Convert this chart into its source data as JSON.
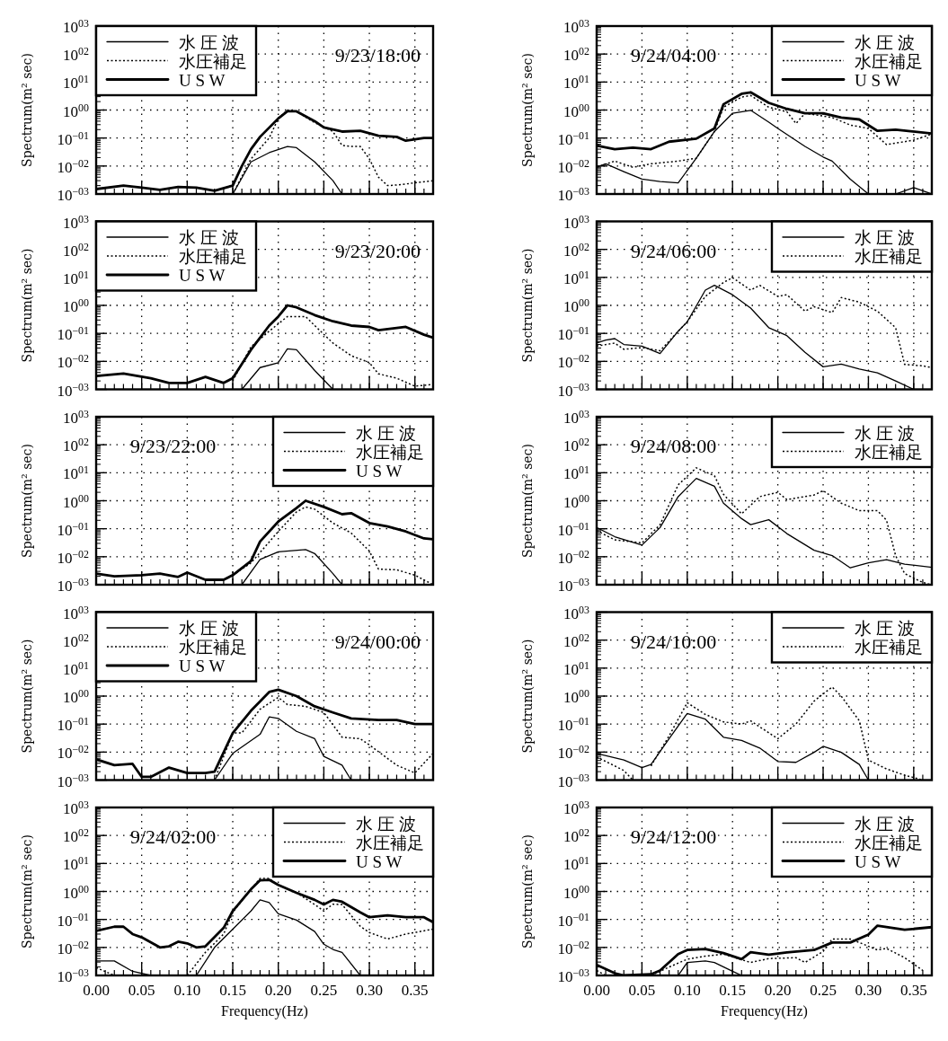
{
  "chart_data": [
    {
      "type": "line",
      "annotations": [
        "9/23/18:00"
      ],
      "ylabel": "Spectrum(m² sec)",
      "xlim": [
        0,
        0.37
      ],
      "ylim": [
        0.001,
        1000
      ],
      "log": "y",
      "grid": true,
      "legend": "top left",
      "tick_labels": "y",
      "xticks": [
        {
          "value": 0,
          "label": null
        },
        {
          "value": 0.05,
          "label": null
        },
        {
          "value": 0.1,
          "label": null
        },
        {
          "value": 0.15,
          "label": null
        },
        {
          "value": 0.2,
          "label": null
        },
        {
          "value": 0.25,
          "label": null
        },
        {
          "value": 0.3,
          "label": null
        },
        {
          "value": 0.35,
          "label": null
        }
      ],
      "yticks": [
        {
          "value": 0.001,
          "label": "10$^{−03}$"
        },
        {
          "value": 0.01,
          "label": "10$^{−02}$"
        },
        {
          "value": 0.1,
          "label": "10$^{−01}$"
        },
        {
          "value": 1,
          "label": "10$^{00}$"
        },
        {
          "value": 10,
          "label": "10$^{01}$"
        },
        {
          "value": 100,
          "label": "10$^{02}$"
        },
        {
          "value": 1000,
          "label": "10$^{03}$"
        }
      ],
      "series": [
        {
          "name": "水 圧 波",
          "color": "#000000",
          "line_style": "solid",
          "x": [
            0.15,
            0.17,
            0.19,
            0.21,
            0.22,
            0.24,
            0.26,
            0.27
          ],
          "values": [
            0.001,
            0.014,
            0.03,
            0.05,
            0.045,
            0.014,
            0.003,
            0.001
          ]
        },
        {
          "name": "水圧補足",
          "color": "#000000",
          "line_style": "dotted",
          "x": [
            0.15,
            0.17,
            0.19,
            0.2,
            0.21,
            0.22,
            0.24,
            0.25,
            0.26,
            0.27,
            0.28,
            0.29,
            0.3,
            0.31,
            0.32,
            0.33,
            0.35,
            0.37
          ],
          "values": [
            0.001,
            0.018,
            0.1,
            0.5,
            1.0,
            0.9,
            0.35,
            0.25,
            0.17,
            0.055,
            0.05,
            0.05,
            0.018,
            0.004,
            0.002,
            0.0021,
            0.0025,
            0.003
          ]
        },
        {
          "name": "U S W",
          "color": "#000000",
          "line_style": "solid",
          "x": [
            0,
            0.03,
            0.05,
            0.07,
            0.09,
            0.11,
            0.13,
            0.15,
            0.16,
            0.17,
            0.18,
            0.2,
            0.21,
            0.22,
            0.24,
            0.25,
            0.27,
            0.29,
            0.31,
            0.33,
            0.34,
            0.36,
            0.37
          ],
          "values": [
            0.0015,
            0.002,
            0.0017,
            0.0014,
            0.0018,
            0.0017,
            0.0013,
            0.002,
            0.01,
            0.04,
            0.11,
            0.5,
            0.9,
            0.9,
            0.4,
            0.24,
            0.17,
            0.18,
            0.12,
            0.11,
            0.08,
            0.1,
            0.1
          ]
        }
      ]
    },
    {
      "type": "line",
      "annotations": [
        "9/24/04:00"
      ],
      "ylabel": "Spectrum(m² sec)",
      "xlim": [
        0,
        0.37
      ],
      "ylim": [
        0.001,
        1000
      ],
      "log": "y",
      "grid": true,
      "legend": "top right",
      "tick_labels": "y",
      "xticks": [
        {
          "value": 0,
          "label": null
        },
        {
          "value": 0.05,
          "label": null
        },
        {
          "value": 0.1,
          "label": null
        },
        {
          "value": 0.15,
          "label": null
        },
        {
          "value": 0.2,
          "label": null
        },
        {
          "value": 0.25,
          "label": null
        },
        {
          "value": 0.3,
          "label": null
        },
        {
          "value": 0.35,
          "label": null
        }
      ],
      "yticks": [
        {
          "value": 0.001,
          "label": "10$^{−03}$"
        },
        {
          "value": 0.01,
          "label": "10$^{−02}$"
        },
        {
          "value": 0.1,
          "label": "10$^{−01}$"
        },
        {
          "value": 1,
          "label": "10$^{00}$"
        },
        {
          "value": 10,
          "label": "10$^{01}$"
        },
        {
          "value": 100,
          "label": "10$^{02}$"
        },
        {
          "value": 1000,
          "label": "10$^{03}$"
        }
      ],
      "series": [
        {
          "name": "水 圧 波",
          "color": "#000000",
          "line_style": "solid",
          "x": [
            0,
            0.01,
            0.03,
            0.05,
            0.07,
            0.09,
            0.11,
            0.13,
            0.15,
            0.17,
            0.19,
            0.2,
            0.23,
            0.25,
            0.26,
            0.28,
            0.3,
            0.33,
            0.35,
            0.37
          ],
          "values": [
            0.009,
            0.012,
            0.0063,
            0.0034,
            0.0028,
            0.0025,
            0.019,
            0.17,
            0.77,
            0.98,
            0.37,
            0.22,
            0.05,
            0.021,
            0.015,
            0.0034,
            0.001,
            0.001,
            0.0017,
            0.001
          ]
        },
        {
          "name": "水圧補足",
          "color": "#000000",
          "line_style": "dotted",
          "x": [
            0,
            0.02,
            0.04,
            0.06,
            0.09,
            0.11,
            0.13,
            0.14,
            0.16,
            0.17,
            0.19,
            0.21,
            0.22,
            0.23,
            0.26,
            0.28,
            0.3,
            0.32,
            0.35,
            0.37
          ],
          "values": [
            0.0091,
            0.015,
            0.009,
            0.012,
            0.015,
            0.019,
            0.17,
            1.26,
            2.9,
            3.3,
            1.26,
            0.87,
            0.33,
            0.77,
            0.54,
            0.29,
            0.22,
            0.058,
            0.084,
            0.14
          ]
        },
        {
          "name": "U S W",
          "color": "#000000",
          "line_style": "solid",
          "x": [
            0,
            0.02,
            0.04,
            0.06,
            0.08,
            0.11,
            0.13,
            0.14,
            0.16,
            0.17,
            0.19,
            0.21,
            0.23,
            0.25,
            0.27,
            0.29,
            0.31,
            0.33,
            0.37
          ],
          "values": [
            0.054,
            0.04,
            0.045,
            0.04,
            0.074,
            0.095,
            0.22,
            1.6,
            3.8,
            4.3,
            1.8,
            1.1,
            0.77,
            0.77,
            0.54,
            0.46,
            0.18,
            0.2,
            0.145
          ]
        }
      ]
    },
    {
      "type": "line",
      "annotations": [
        "9/23/20:00"
      ],
      "ylabel": "Spectrum(m² sec)",
      "xlim": [
        0,
        0.37
      ],
      "ylim": [
        0.001,
        1000
      ],
      "log": "y",
      "grid": true,
      "legend": "top left",
      "tick_labels": "y",
      "xticks": [
        {
          "value": 0,
          "label": null
        },
        {
          "value": 0.05,
          "label": null
        },
        {
          "value": 0.1,
          "label": null
        },
        {
          "value": 0.15,
          "label": null
        },
        {
          "value": 0.2,
          "label": null
        },
        {
          "value": 0.25,
          "label": null
        },
        {
          "value": 0.3,
          "label": null
        },
        {
          "value": 0.35,
          "label": null
        }
      ],
      "yticks": [
        {
          "value": 0.001,
          "label": "10$^{−03}$"
        },
        {
          "value": 0.01,
          "label": "10$^{−02}$"
        },
        {
          "value": 0.1,
          "label": "10$^{−01}$"
        },
        {
          "value": 1,
          "label": "10$^{00}$"
        },
        {
          "value": 10,
          "label": "10$^{01}$"
        },
        {
          "value": 100,
          "label": "10$^{02}$"
        },
        {
          "value": 1000,
          "label": "10$^{03}$"
        }
      ],
      "series": [
        {
          "name": "水 圧 波",
          "color": "#000000",
          "line_style": "solid",
          "x": [
            0.16,
            0.18,
            0.2,
            0.21,
            0.22,
            0.24,
            0.26
          ],
          "values": [
            0.001,
            0.006,
            0.009,
            0.028,
            0.026,
            0.0047,
            0.001
          ]
        },
        {
          "name": "水圧補足",
          "color": "#000000",
          "line_style": "dotted",
          "x": [
            0.15,
            0.17,
            0.19,
            0.21,
            0.23,
            0.24,
            0.26,
            0.28,
            0.3,
            0.31,
            0.33,
            0.35,
            0.37
          ],
          "values": [
            0.002,
            0.033,
            0.12,
            0.4,
            0.4,
            0.19,
            0.045,
            0.016,
            0.009,
            0.0036,
            0.0025,
            0.0013,
            0.0015
          ]
        },
        {
          "name": "U S W",
          "color": "#000000",
          "line_style": "solid",
          "x": [
            0,
            0.03,
            0.06,
            0.08,
            0.1,
            0.12,
            0.14,
            0.15,
            0.17,
            0.19,
            0.2,
            0.21,
            0.22,
            0.24,
            0.26,
            0.28,
            0.3,
            0.31,
            0.34,
            0.36,
            0.37
          ],
          "values": [
            0.003,
            0.0037,
            0.0025,
            0.0017,
            0.0017,
            0.0028,
            0.0017,
            0.0025,
            0.026,
            0.19,
            0.4,
            1.0,
            0.85,
            0.45,
            0.27,
            0.19,
            0.17,
            0.13,
            0.17,
            0.09,
            0.07
          ]
        }
      ]
    },
    {
      "type": "line",
      "annotations": [
        "9/24/06:00"
      ],
      "ylabel": "Spectrum(m² sec)",
      "xlim": [
        0,
        0.37
      ],
      "ylim": [
        0.001,
        1000
      ],
      "log": "y",
      "grid": true,
      "legend": "top right",
      "tick_labels": "y",
      "xticks": [
        {
          "value": 0,
          "label": null
        },
        {
          "value": 0.05,
          "label": null
        },
        {
          "value": 0.1,
          "label": null
        },
        {
          "value": 0.15,
          "label": null
        },
        {
          "value": 0.2,
          "label": null
        },
        {
          "value": 0.25,
          "label": null
        },
        {
          "value": 0.3,
          "label": null
        },
        {
          "value": 0.35,
          "label": null
        }
      ],
      "yticks": [
        {
          "value": 0.001,
          "label": "10$^{−03}$"
        },
        {
          "value": 0.01,
          "label": "10$^{−02}$"
        },
        {
          "value": 0.1,
          "label": "10$^{−01}$"
        },
        {
          "value": 1,
          "label": "10$^{00}$"
        },
        {
          "value": 10,
          "label": "10$^{01}$"
        },
        {
          "value": 100,
          "label": "10$^{02}$"
        },
        {
          "value": 1000,
          "label": "10$^{03}$"
        }
      ],
      "series": [
        {
          "name": "水 圧 波",
          "color": "#000000",
          "line_style": "solid",
          "x": [
            0,
            0.01,
            0.02,
            0.03,
            0.05,
            0.07,
            0.09,
            0.1,
            0.12,
            0.13,
            0.15,
            0.17,
            0.19,
            0.21,
            0.23,
            0.25,
            0.27,
            0.29,
            0.31,
            0.33,
            0.35
          ],
          "values": [
            0.045,
            0.058,
            0.065,
            0.04,
            0.035,
            0.019,
            0.12,
            0.26,
            3.5,
            5.2,
            2.4,
            0.8,
            0.16,
            0.083,
            0.021,
            0.0064,
            0.008,
            0.0053,
            0.0039,
            0.002,
            0.001
          ]
        },
        {
          "name": "水圧補足",
          "color": "#000000",
          "line_style": "dotted",
          "x": [
            0,
            0.02,
            0.03,
            0.05,
            0.07,
            0.1,
            0.12,
            0.14,
            0.15,
            0.17,
            0.18,
            0.2,
            0.21,
            0.23,
            0.24,
            0.26,
            0.27,
            0.29,
            0.31,
            0.33,
            0.34,
            0.36,
            0.37
          ],
          "values": [
            0.035,
            0.045,
            0.027,
            0.031,
            0.024,
            0.26,
            2.1,
            6.6,
            9.8,
            3.5,
            5.2,
            2.1,
            2.4,
            0.62,
            0.9,
            0.55,
            1.9,
            1.3,
            0.62,
            0.16,
            0.0078,
            0.0069,
            0.006
          ]
        }
      ]
    },
    {
      "type": "line",
      "annotations": [
        "9/23/22:00"
      ],
      "ylabel": "Spectrum(m² sec)",
      "xlim": [
        0,
        0.37
      ],
      "ylim": [
        0.001,
        1000
      ],
      "log": "y",
      "grid": true,
      "legend": "top right",
      "tick_labels": "y",
      "xticks": [
        {
          "value": 0,
          "label": null
        },
        {
          "value": 0.05,
          "label": null
        },
        {
          "value": 0.1,
          "label": null
        },
        {
          "value": 0.15,
          "label": null
        },
        {
          "value": 0.2,
          "label": null
        },
        {
          "value": 0.25,
          "label": null
        },
        {
          "value": 0.3,
          "label": null
        },
        {
          "value": 0.35,
          "label": null
        }
      ],
      "yticks": [
        {
          "value": 0.001,
          "label": "10$^{−03}$"
        },
        {
          "value": 0.01,
          "label": "10$^{−02}$"
        },
        {
          "value": 0.1,
          "label": "10$^{−01}$"
        },
        {
          "value": 1,
          "label": "10$^{00}$"
        },
        {
          "value": 10,
          "label": "10$^{01}$"
        },
        {
          "value": 100,
          "label": "10$^{02}$"
        },
        {
          "value": 1000,
          "label": "10$^{03}$"
        }
      ],
      "series": [
        {
          "name": "水 圧 波",
          "color": "#000000",
          "line_style": "solid",
          "x": [
            0.16,
            0.18,
            0.2,
            0.23,
            0.24,
            0.26,
            0.27
          ],
          "values": [
            0.001,
            0.008,
            0.015,
            0.018,
            0.013,
            0.0025,
            0.001
          ]
        },
        {
          "name": "水圧補足",
          "color": "#000000",
          "line_style": "dotted",
          "x": [
            0.15,
            0.17,
            0.2,
            0.22,
            0.23,
            0.24,
            0.26,
            0.28,
            0.3,
            0.31,
            0.33,
            0.35,
            0.37
          ],
          "values": [
            0.0022,
            0.006,
            0.08,
            0.4,
            0.6,
            0.5,
            0.16,
            0.07,
            0.016,
            0.0036,
            0.0034,
            0.0022,
            0.001
          ]
        },
        {
          "name": "U S W",
          "color": "#000000",
          "line_style": "solid",
          "x": [
            0,
            0.02,
            0.05,
            0.07,
            0.09,
            0.1,
            0.12,
            0.14,
            0.15,
            0.17,
            0.18,
            0.2,
            0.22,
            0.23,
            0.25,
            0.27,
            0.28,
            0.3,
            0.32,
            0.34,
            0.36,
            0.37
          ],
          "values": [
            0.0025,
            0.002,
            0.0022,
            0.0025,
            0.0019,
            0.0027,
            0.0015,
            0.0015,
            0.0022,
            0.007,
            0.035,
            0.18,
            0.55,
            1.0,
            0.6,
            0.33,
            0.36,
            0.16,
            0.12,
            0.08,
            0.045,
            0.042
          ]
        }
      ]
    },
    {
      "type": "line",
      "annotations": [
        "9/24/08:00"
      ],
      "ylabel": "Spectrum(m² sec)",
      "xlim": [
        0,
        0.37
      ],
      "ylim": [
        0.001,
        1000
      ],
      "log": "y",
      "grid": true,
      "legend": "top right",
      "tick_labels": "y",
      "xticks": [
        {
          "value": 0,
          "label": null
        },
        {
          "value": 0.05,
          "label": null
        },
        {
          "value": 0.1,
          "label": null
        },
        {
          "value": 0.15,
          "label": null
        },
        {
          "value": 0.2,
          "label": null
        },
        {
          "value": 0.25,
          "label": null
        },
        {
          "value": 0.3,
          "label": null
        },
        {
          "value": 0.35,
          "label": null
        }
      ],
      "yticks": [
        {
          "value": 0.001,
          "label": "10$^{−03}$"
        },
        {
          "value": 0.01,
          "label": "10$^{−02}$"
        },
        {
          "value": 0.1,
          "label": "10$^{−01}$"
        },
        {
          "value": 1,
          "label": "10$^{00}$"
        },
        {
          "value": 10,
          "label": "10$^{01}$"
        },
        {
          "value": 100,
          "label": "10$^{02}$"
        },
        {
          "value": 1000,
          "label": "10$^{03}$"
        }
      ],
      "series": [
        {
          "name": "水 圧 波",
          "color": "#000000",
          "line_style": "solid",
          "x": [
            0,
            0.02,
            0.05,
            0.07,
            0.09,
            0.11,
            0.13,
            0.14,
            0.16,
            0.17,
            0.19,
            0.21,
            0.24,
            0.26,
            0.28,
            0.3,
            0.32,
            0.34,
            0.37
          ],
          "values": [
            0.11,
            0.052,
            0.026,
            0.11,
            1.4,
            6.3,
            3.3,
            0.82,
            0.23,
            0.14,
            0.21,
            0.067,
            0.017,
            0.011,
            0.004,
            0.0061,
            0.0079,
            0.0054,
            0.0042
          ]
        },
        {
          "name": "水圧補足",
          "color": "#000000",
          "line_style": "dotted",
          "x": [
            0,
            0.02,
            0.05,
            0.07,
            0.09,
            0.11,
            0.13,
            0.14,
            0.16,
            0.18,
            0.2,
            0.21,
            0.24,
            0.25,
            0.27,
            0.29,
            0.31,
            0.32,
            0.33,
            0.34,
            0.36,
            0.37
          ],
          "values": [
            0.086,
            0.04,
            0.031,
            0.14,
            3.7,
            15,
            7.8,
            1.7,
            0.34,
            1.4,
            2.0,
            1.1,
            1.6,
            2.3,
            0.82,
            0.44,
            0.44,
            0.2,
            0.011,
            0.0025,
            0.0012,
            0.001
          ]
        }
      ]
    },
    {
      "type": "line",
      "annotations": [
        "9/24/00:00"
      ],
      "ylabel": "Spectrum(m² sec)",
      "xlim": [
        0,
        0.37
      ],
      "ylim": [
        0.001,
        1000
      ],
      "log": "y",
      "grid": true,
      "legend": "top left",
      "tick_labels": "y",
      "xticks": [
        {
          "value": 0,
          "label": null
        },
        {
          "value": 0.05,
          "label": null
        },
        {
          "value": 0.1,
          "label": null
        },
        {
          "value": 0.15,
          "label": null
        },
        {
          "value": 0.2,
          "label": null
        },
        {
          "value": 0.25,
          "label": null
        },
        {
          "value": 0.3,
          "label": null
        },
        {
          "value": 0.35,
          "label": null
        }
      ],
      "yticks": [
        {
          "value": 0.001,
          "label": "10$^{−03}$"
        },
        {
          "value": 0.01,
          "label": "10$^{−02}$"
        },
        {
          "value": 0.1,
          "label": "10$^{−01}$"
        },
        {
          "value": 1,
          "label": "10$^{00}$"
        },
        {
          "value": 10,
          "label": "10$^{01}$"
        },
        {
          "value": 100,
          "label": "10$^{02}$"
        },
        {
          "value": 1000,
          "label": "10$^{03}$"
        }
      ],
      "series": [
        {
          "name": "水 圧 波",
          "color": "#000000",
          "line_style": "solid",
          "x": [
            0.13,
            0.15,
            0.18,
            0.19,
            0.2,
            0.22,
            0.24,
            0.25,
            0.27,
            0.28
          ],
          "values": [
            0.001,
            0.009,
            0.043,
            0.18,
            0.16,
            0.055,
            0.03,
            0.007,
            0.0034,
            0.001
          ]
        },
        {
          "name": "水圧補足",
          "color": "#000000",
          "line_style": "dotted",
          "x": [
            0.13,
            0.15,
            0.16,
            0.18,
            0.2,
            0.21,
            0.23,
            0.25,
            0.27,
            0.29,
            0.3,
            0.33,
            0.35,
            0.37
          ],
          "values": [
            0.001,
            0.048,
            0.048,
            0.34,
            0.9,
            0.5,
            0.43,
            0.26,
            0.034,
            0.03,
            0.018,
            0.0034,
            0.0018,
            0.009
          ]
        },
        {
          "name": "U S W",
          "color": "#000000",
          "line_style": "solid",
          "x": [
            0,
            0.02,
            0.04,
            0.05,
            0.06,
            0.08,
            0.1,
            0.12,
            0.13,
            0.15,
            0.17,
            0.19,
            0.2,
            0.22,
            0.24,
            0.26,
            0.28,
            0.31,
            0.33,
            0.35,
            0.37
          ],
          "values": [
            0.0055,
            0.0034,
            0.0038,
            0.0013,
            0.0013,
            0.0028,
            0.0018,
            0.0018,
            0.002,
            0.048,
            0.3,
            1.4,
            1.7,
            1.0,
            0.43,
            0.26,
            0.16,
            0.14,
            0.14,
            0.1,
            0.1
          ]
        }
      ]
    },
    {
      "type": "line",
      "annotations": [
        "9/24/10:00"
      ],
      "ylabel": "Spectrum(m² sec)",
      "xlim": [
        0,
        0.37
      ],
      "ylim": [
        0.001,
        1000
      ],
      "log": "y",
      "grid": true,
      "legend": "top right",
      "tick_labels": "y",
      "xticks": [
        {
          "value": 0,
          "label": null
        },
        {
          "value": 0.05,
          "label": null
        },
        {
          "value": 0.1,
          "label": null
        },
        {
          "value": 0.15,
          "label": null
        },
        {
          "value": 0.2,
          "label": null
        },
        {
          "value": 0.25,
          "label": null
        },
        {
          "value": 0.3,
          "label": null
        },
        {
          "value": 0.35,
          "label": null
        }
      ],
      "yticks": [
        {
          "value": 0.001,
          "label": "10$^{−03}$"
        },
        {
          "value": 0.01,
          "label": "10$^{−02}$"
        },
        {
          "value": 0.1,
          "label": "10$^{−01}$"
        },
        {
          "value": 1,
          "label": "10$^{00}$"
        },
        {
          "value": 10,
          "label": "10$^{01}$"
        },
        {
          "value": 100,
          "label": "10$^{02}$"
        },
        {
          "value": 1000,
          "label": "10$^{03}$"
        }
      ],
      "series": [
        {
          "name": "水 圧 波",
          "color": "#000000",
          "line_style": "solid",
          "x": [
            0,
            0.03,
            0.05,
            0.06,
            0.08,
            0.1,
            0.12,
            0.14,
            0.16,
            0.18,
            0.2,
            0.22,
            0.24,
            0.25,
            0.27,
            0.29,
            0.3
          ],
          "values": [
            0.009,
            0.0052,
            0.0028,
            0.0036,
            0.03,
            0.24,
            0.15,
            0.034,
            0.026,
            0.014,
            0.0046,
            0.0043,
            0.0098,
            0.016,
            0.0098,
            0.0036,
            0.001
          ]
        },
        {
          "name": "水圧補足",
          "color": "#000000",
          "line_style": "dotted",
          "x": [
            0,
            0.03,
            0.04,
            0.05,
            0.06,
            0.08,
            0.1,
            0.12,
            0.14,
            0.16,
            0.17,
            0.2,
            0.22,
            0.24,
            0.25,
            0.26,
            0.27,
            0.29,
            0.3,
            0.32,
            0.34,
            0.36
          ],
          "values": [
            0.0067,
            0.0022,
            0.001,
            null,
            0.0032,
            0.038,
            0.58,
            0.22,
            0.12,
            0.1,
            0.13,
            0.03,
            0.1,
            0.66,
            1.2,
            2.1,
            1.0,
            0.13,
            0.0052,
            0.0025,
            0.0015,
            0.001
          ]
        }
      ]
    },
    {
      "type": "line",
      "annotations": [
        "9/24/02:00"
      ],
      "xlabel": "Frequency(Hz)",
      "ylabel": "Spectrum(m² sec)",
      "xlim": [
        0,
        0.37
      ],
      "ylim": [
        0.001,
        1000
      ],
      "log": "y",
      "grid": true,
      "legend": "top right",
      "xticks": [
        {
          "value": 0,
          "label": "0.00"
        },
        {
          "value": 0.05,
          "label": "0.05"
        },
        {
          "value": 0.1,
          "label": "0.10"
        },
        {
          "value": 0.15,
          "label": "0.15"
        },
        {
          "value": 0.2,
          "label": "0.20"
        },
        {
          "value": 0.25,
          "label": "0.25"
        },
        {
          "value": 0.3,
          "label": "0.30"
        },
        {
          "value": 0.35,
          "label": "0.35"
        }
      ],
      "yticks": [
        {
          "value": 0.001,
          "label": "10$^{−03}$"
        },
        {
          "value": 0.01,
          "label": "10$^{−02}$"
        },
        {
          "value": 0.1,
          "label": "10$^{−01}$"
        },
        {
          "value": 1,
          "label": "10$^{00}$"
        },
        {
          "value": 10,
          "label": "10$^{01}$"
        },
        {
          "value": 100,
          "label": "10$^{02}$"
        },
        {
          "value": 1000,
          "label": "10$^{03}$"
        }
      ],
      "series": [
        {
          "name": "水 圧 波",
          "color": "#000000",
          "line_style": "solid",
          "x": [
            0,
            0.02,
            0.04,
            0.06,
            0.11,
            0.13,
            0.15,
            0.17,
            0.18,
            0.19,
            0.2,
            0.22,
            0.24,
            0.25,
            0.26,
            0.27,
            0.29
          ],
          "values": [
            0.0033,
            0.0033,
            0.0014,
            0.001,
            0.001,
            0.01,
            0.045,
            0.2,
            0.5,
            0.4,
            0.16,
            0.095,
            0.037,
            0.013,
            0.0085,
            0.0066,
            0.001
          ]
        },
        {
          "name": "水圧補足",
          "color": "#000000",
          "line_style": "dotted",
          "x": [
            0,
            0.02,
            0.06,
            0.1,
            0.12,
            0.14,
            0.15,
            0.17,
            0.18,
            0.19,
            0.2,
            0.22,
            0.24,
            0.25,
            0.26,
            0.27,
            0.29,
            0.3,
            0.32,
            0.34,
            0.37
          ],
          "values": [
            0.0019,
            0.001,
            null,
            0.001,
            0.0067,
            0.03,
            0.18,
            1.2,
            2.9,
            2.9,
            1.7,
            0.9,
            0.34,
            0.2,
            0.35,
            0.34,
            0.057,
            0.034,
            0.02,
            0.03,
            0.045
          ]
        },
        {
          "name": "U S W",
          "color": "#000000",
          "line_style": "solid",
          "x": [
            0,
            0.02,
            0.03,
            0.04,
            0.05,
            0.07,
            0.08,
            0.09,
            0.1,
            0.11,
            0.12,
            0.14,
            0.15,
            0.17,
            0.18,
            0.19,
            0.2,
            0.22,
            0.24,
            0.25,
            0.26,
            0.27,
            0.29,
            0.3,
            0.32,
            0.34,
            0.36,
            0.37
          ],
          "values": [
            0.039,
            0.055,
            0.055,
            0.03,
            0.023,
            0.01,
            0.011,
            0.016,
            0.014,
            0.01,
            0.011,
            0.05,
            0.2,
            1.2,
            2.5,
            2.6,
            1.7,
            0.9,
            0.5,
            0.34,
            0.5,
            0.43,
            0.18,
            0.12,
            0.14,
            0.12,
            0.12,
            0.08
          ]
        }
      ]
    },
    {
      "type": "line",
      "annotations": [
        "9/24/12:00"
      ],
      "xlabel": "Frequency(Hz)",
      "ylabel": "Spectrum(m² sec)",
      "xlim": [
        0,
        0.37
      ],
      "ylim": [
        0.001,
        1000
      ],
      "log": "y",
      "grid": true,
      "legend": "top right",
      "xticks": [
        {
          "value": 0,
          "label": "0.00"
        },
        {
          "value": 0.05,
          "label": "0.05"
        },
        {
          "value": 0.1,
          "label": "0.10"
        },
        {
          "value": 0.15,
          "label": "0.15"
        },
        {
          "value": 0.2,
          "label": "0.20"
        },
        {
          "value": 0.25,
          "label": "0.25"
        },
        {
          "value": 0.3,
          "label": "0.30"
        },
        {
          "value": 0.35,
          "label": "0.35"
        }
      ],
      "yticks": [
        {
          "value": 0.001,
          "label": "10$^{−03}$"
        },
        {
          "value": 0.01,
          "label": "10$^{−02}$"
        },
        {
          "value": 0.1,
          "label": "10$^{−01}$"
        },
        {
          "value": 1,
          "label": "10$^{00}$"
        },
        {
          "value": 10,
          "label": "10$^{01}$"
        },
        {
          "value": 100,
          "label": "10$^{02}$"
        },
        {
          "value": 1000,
          "label": "10$^{03}$"
        }
      ],
      "series": [
        {
          "name": "水 圧 波",
          "color": "#000000",
          "line_style": "solid",
          "x": [
            0.09,
            0.1,
            0.12,
            0.13,
            0.15,
            0.16
          ],
          "values": [
            0.001,
            0.0029,
            0.0033,
            0.0029,
            0.0014,
            0.001
          ]
        },
        {
          "name": "水圧補足",
          "color": "#000000",
          "line_style": "dotted",
          "x": [
            0,
            0.01,
            0.03,
            0.06,
            0.08,
            0.1,
            0.12,
            0.14,
            0.17,
            0.19,
            0.22,
            0.23,
            0.25,
            0.26,
            0.28,
            0.29,
            0.31,
            0.32,
            0.34,
            0.36
          ],
          "values": [
            0.0015,
            0.001,
            null,
            0.001,
            0.002,
            0.0038,
            0.0049,
            0.0058,
            0.0029,
            0.004,
            0.0043,
            0.0029,
            0.0072,
            0.02,
            0.02,
            0.015,
            0.0081,
            0.0092,
            0.0043,
            0.0015
          ]
        },
        {
          "name": "U S W",
          "color": "#000000",
          "line_style": "solid",
          "x": [
            0,
            0.02,
            0.03,
            0.06,
            0.07,
            0.09,
            0.1,
            0.12,
            0.14,
            0.16,
            0.17,
            0.19,
            0.21,
            0.24,
            0.26,
            0.28,
            0.3,
            0.31,
            0.34,
            0.37
          ],
          "values": [
            0.0024,
            0.0012,
            0.001,
            0.0011,
            0.0015,
            0.0058,
            0.0081,
            0.0088,
            0.0063,
            0.0038,
            0.0068,
            0.0055,
            0.0066,
            0.0081,
            0.015,
            0.015,
            0.029,
            0.06,
            0.043,
            0.053
          ]
        }
      ]
    }
  ]
}
